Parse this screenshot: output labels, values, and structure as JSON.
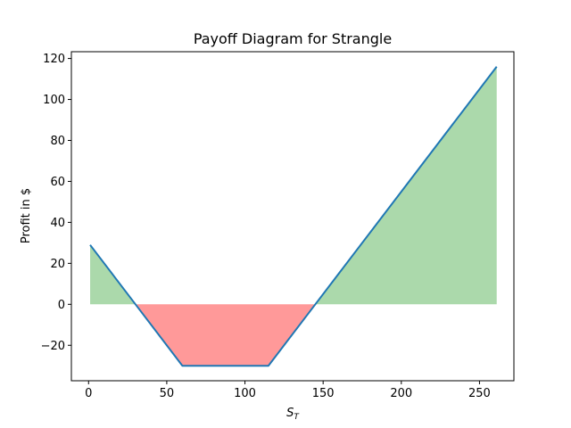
{
  "chart_data": {
    "type": "line",
    "title": "Payoff Diagram for Strangle",
    "xlabel_main": "S",
    "xlabel_sub": "T",
    "ylabel": "Profit in $",
    "xlim": [
      -11,
      272
    ],
    "ylim": [
      -37.3,
      123.3
    ],
    "x_ticks": [
      0,
      50,
      100,
      150,
      200,
      250
    ],
    "x_tick_labels": [
      "0",
      "50",
      "100",
      "150",
      "200",
      "250"
    ],
    "y_ticks": [
      -20,
      0,
      20,
      40,
      60,
      80,
      100,
      120
    ],
    "y_tick_labels": [
      "−20",
      "0",
      "20",
      "40",
      "60",
      "80",
      "100",
      "120"
    ],
    "series": [
      {
        "x": [
          1,
          30,
          60,
          115,
          145,
          261
        ],
        "y": [
          29,
          0,
          -30,
          -30,
          0,
          116
        ]
      }
    ],
    "line_color": "#1f77b4",
    "profit_fill_color": "#2ca02c",
    "loss_fill_color": "#ff0000",
    "fill_alpha": 0.4,
    "grid": false,
    "legend": "none"
  }
}
